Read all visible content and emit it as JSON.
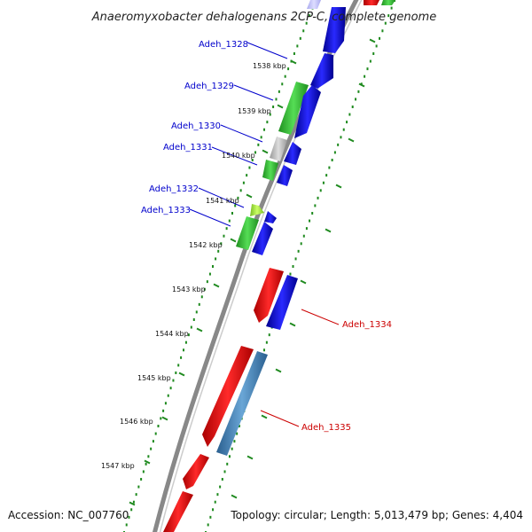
{
  "title": "Anaeromyxobacter dehalogenans 2CP-C, complete genome",
  "footer": {
    "accession": "Accession: NC_007760",
    "summary": "Topology: circular; Length: 5,013,479 bp; Genes: 4,404"
  },
  "colors": {
    "backbone": "#888888",
    "tick_dot": "#1e8a1e",
    "label_forward": "#0000cc",
    "label_reverse": "#cc0000",
    "gene_green": "#3cc43c",
    "gene_blue": "#0000dd",
    "gene_red": "#ee0000",
    "gene_gray": "#bbbbbb",
    "gene_lime": "#aaee44",
    "gene_steel": "#4682b4"
  },
  "kbp_labels": [
    "1538 kbp",
    "1539 kbp",
    "1540 kbp",
    "1541 kbp",
    "1542 kbp",
    "1543 kbp",
    "1544 kbp",
    "1545 kbp",
    "1546 kbp",
    "1547 kbp"
  ],
  "gene_labels": [
    {
      "name": "Adeh_1328",
      "strand": "forward"
    },
    {
      "name": "Adeh_1329",
      "strand": "forward"
    },
    {
      "name": "Adeh_1330",
      "strand": "forward"
    },
    {
      "name": "Adeh_1331",
      "strand": "forward"
    },
    {
      "name": "Adeh_1332",
      "strand": "forward"
    },
    {
      "name": "Adeh_1333",
      "strand": "forward"
    },
    {
      "name": "Adeh_1334",
      "strand": "reverse"
    },
    {
      "name": "Adeh_1335",
      "strand": "reverse"
    }
  ]
}
